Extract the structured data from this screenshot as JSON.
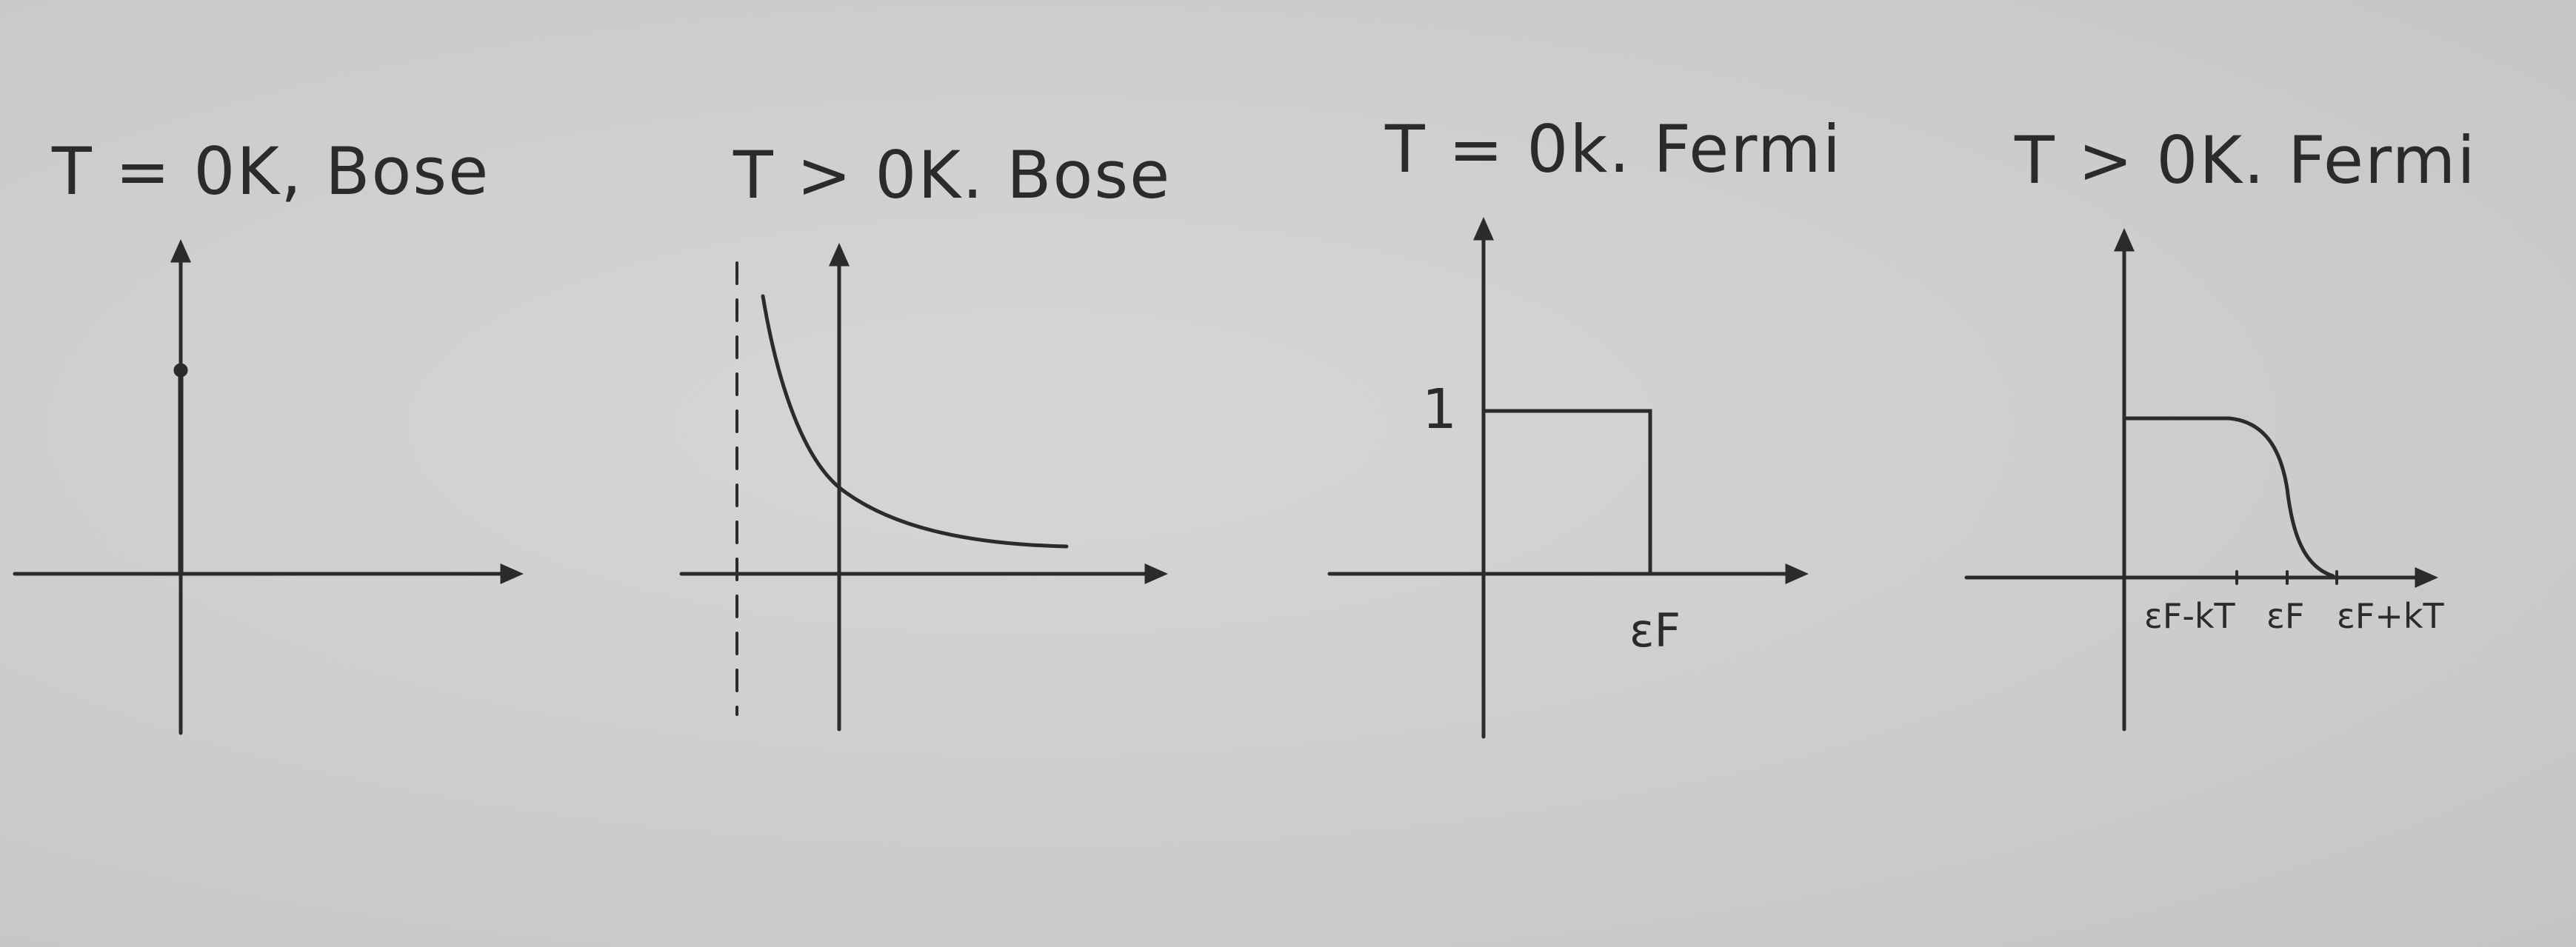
{
  "panels": [
    {
      "id": "bose-zero",
      "title": "T = 0K, Bose"
    },
    {
      "id": "bose-positive",
      "title": "T > 0K. Bose"
    },
    {
      "id": "fermi-zero",
      "title": "T = 0k. Fermi",
      "y_tick_label": "1",
      "x_tick_label": "εF"
    },
    {
      "id": "fermi-positive",
      "title": "T > 0K. Fermi",
      "x_tick_labels": [
        "εF-kT",
        "εF",
        "εF+kT"
      ]
    }
  ],
  "colors": {
    "ink": "#2b2b2b",
    "paper": "#d3d1cf"
  }
}
